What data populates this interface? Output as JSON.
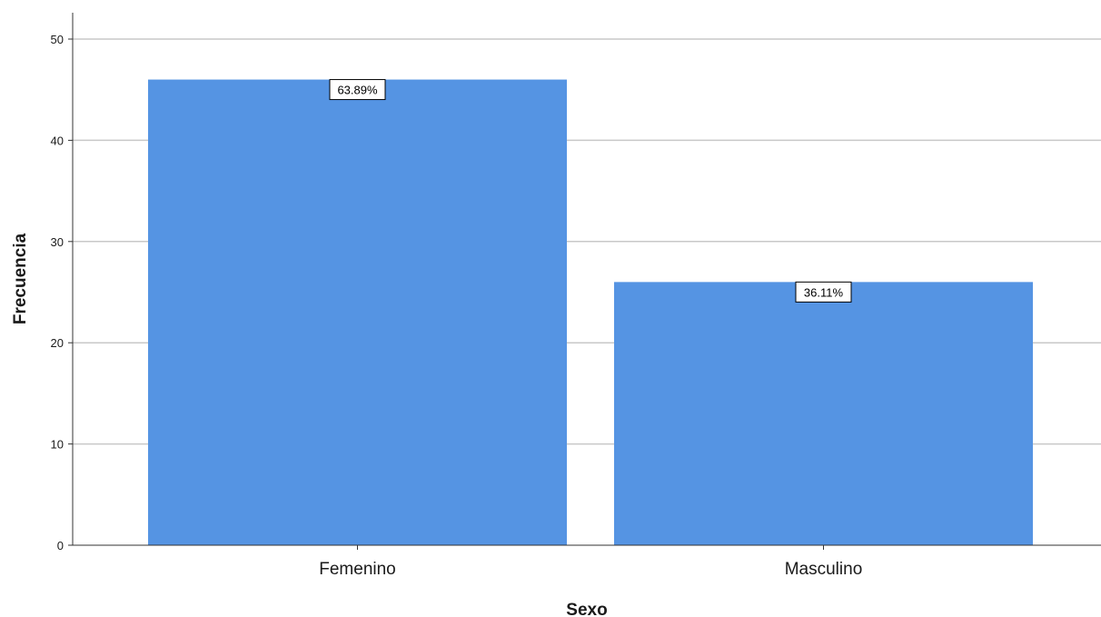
{
  "chart_data": {
    "type": "bar",
    "categories": [
      "Femenino",
      "Masculino"
    ],
    "values": [
      46,
      26
    ],
    "data_labels": [
      "63.89%",
      "36.11%"
    ],
    "xlabel": "Sexo",
    "ylabel": "Frecuencia",
    "ylim": [
      0,
      50
    ],
    "yticks": [
      "0",
      "10",
      "20",
      "30",
      "40",
      "50"
    ],
    "grid": true,
    "bar_color": "#5594E3"
  }
}
